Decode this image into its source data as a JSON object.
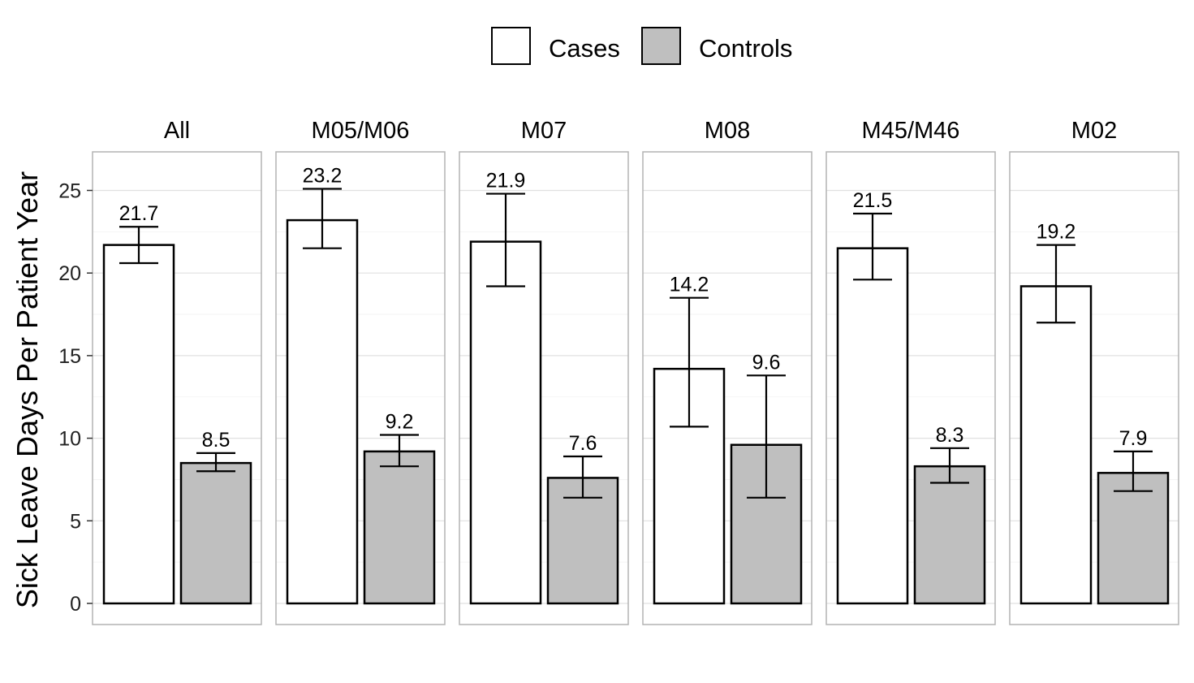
{
  "chart_data": {
    "type": "bar",
    "ylabel": "Sick Leave Days Per Patient Year",
    "xlabel": "",
    "ylim": [
      0,
      27
    ],
    "yticks": [
      0,
      5,
      10,
      15,
      20,
      25
    ],
    "grid": true,
    "legend_position": "top",
    "facets": [
      "All",
      "M05/M06",
      "M07",
      "M08",
      "M45/M46",
      "M02"
    ],
    "series": [
      {
        "name": "Cases",
        "color": "#ffffff",
        "values": [
          21.7,
          23.2,
          21.9,
          14.2,
          21.5,
          19.2
        ],
        "value_labels": [
          "21.7",
          "23.2",
          "21.9",
          "14.2",
          "21.5",
          "19.2"
        ],
        "ci_low": [
          20.6,
          21.5,
          19.2,
          10.7,
          19.6,
          17.0
        ],
        "ci_high": [
          22.8,
          25.1,
          24.8,
          18.5,
          23.6,
          21.7
        ]
      },
      {
        "name": "Controls",
        "color": "#bfbfbf",
        "values": [
          8.5,
          9.2,
          7.6,
          9.6,
          8.3,
          7.9
        ],
        "value_labels": [
          "8.5",
          "9.2",
          "7.6",
          "9.6",
          "8.3",
          "7.9"
        ],
        "ci_low": [
          8.0,
          8.3,
          6.4,
          6.4,
          7.3,
          6.8
        ],
        "ci_high": [
          9.1,
          10.2,
          8.9,
          13.8,
          9.4,
          9.2
        ]
      }
    ]
  }
}
